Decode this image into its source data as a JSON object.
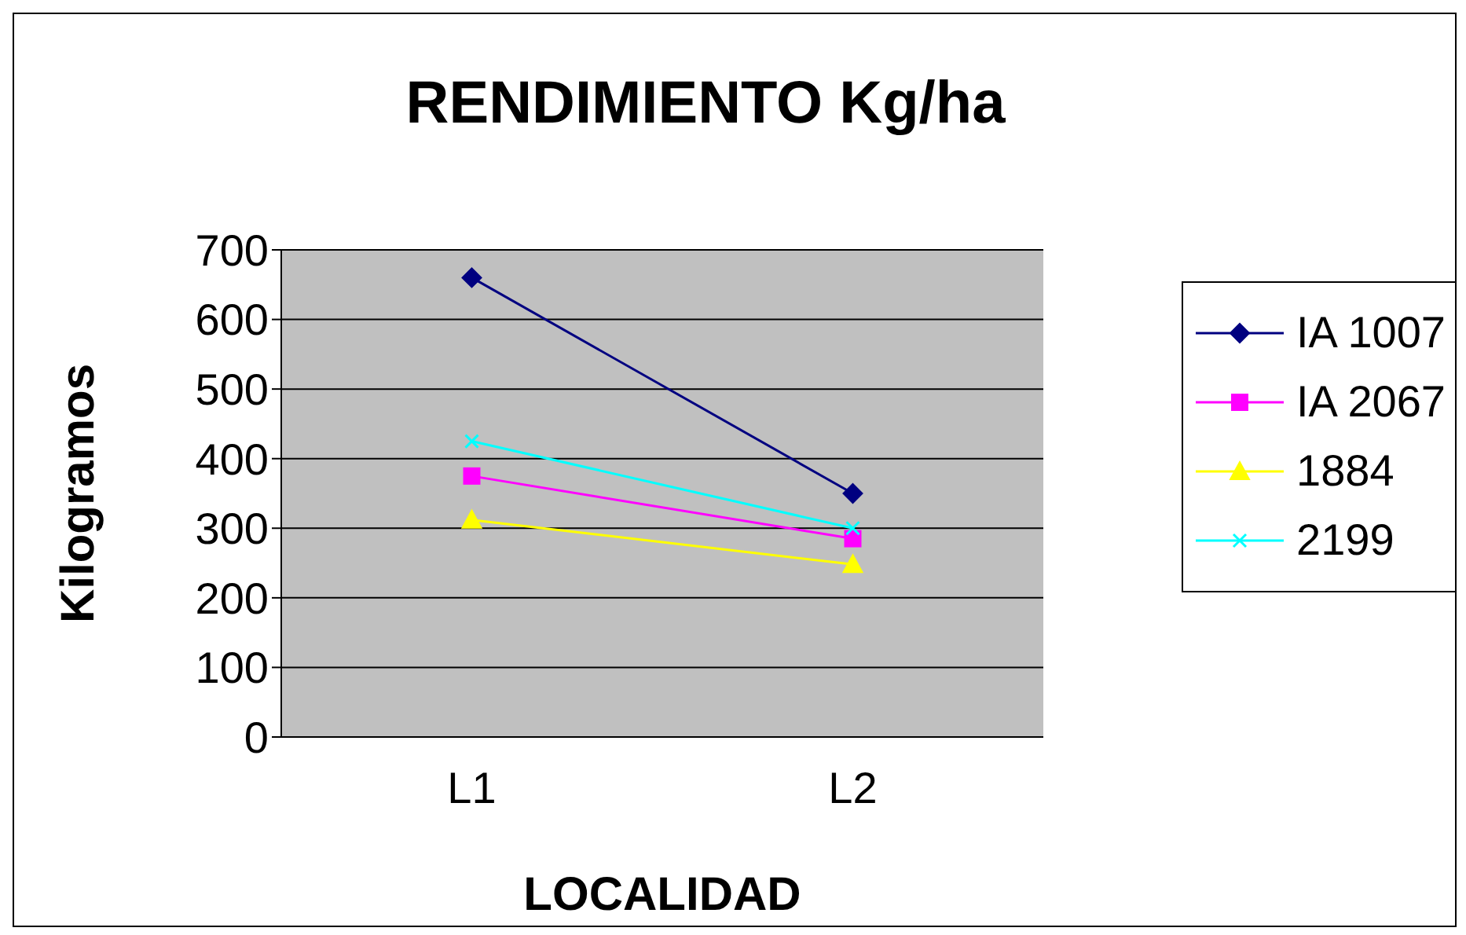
{
  "chart_data": {
    "type": "line",
    "title": "RENDIMIENTO Kg/ha",
    "xlabel": "LOCALIDAD",
    "ylabel": "Kilogramos",
    "categories": [
      "L1",
      "L2"
    ],
    "series": [
      {
        "name": "IA 1007",
        "color": "#000080",
        "marker": "diamond",
        "values": [
          660,
          350
        ]
      },
      {
        "name": "IA 2067",
        "color": "#ff00ff",
        "marker": "square",
        "values": [
          375,
          285
        ]
      },
      {
        "name": "1884",
        "color": "#ffff00",
        "marker": "triangle",
        "values": [
          312,
          248
        ]
      },
      {
        "name": "2199",
        "color": "#00ffff",
        "marker": "cross",
        "values": [
          425,
          300
        ]
      }
    ],
    "ylim": [
      0,
      700
    ],
    "yticks": [
      0,
      100,
      200,
      300,
      400,
      500,
      600,
      700
    ],
    "grid": "y",
    "legend": "right"
  }
}
